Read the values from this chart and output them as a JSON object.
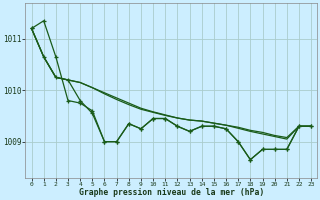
{
  "title": "Graphe pression niveau de la mer (hPa)",
  "bg_color": "#cceeff",
  "grid_color": "#aacccc",
  "line_color": "#1a5c1a",
  "xlim": [
    -0.5,
    23.5
  ],
  "ylim": [
    1008.3,
    1011.7
  ],
  "yticks": [
    1009,
    1010,
    1011
  ],
  "xticks": [
    0,
    1,
    2,
    3,
    4,
    5,
    6,
    7,
    8,
    9,
    10,
    11,
    12,
    13,
    14,
    15,
    16,
    17,
    18,
    19,
    20,
    21,
    22,
    23
  ],
  "series1": [
    1011.2,
    1011.35,
    1010.65,
    1009.8,
    1009.75,
    1009.6,
    1009.0,
    1009.0,
    1009.35,
    1009.25,
    1009.45,
    1009.45,
    1009.3,
    1009.2,
    1009.3,
    1009.3,
    1009.25,
    1009.0,
    1008.65,
    1008.85,
    1008.85,
    1008.85,
    1009.3,
    1009.3
  ],
  "series2": [
    1011.2,
    1010.65,
    1010.25,
    1010.2,
    1009.8,
    1009.55,
    1009.0,
    1009.0,
    1009.35,
    1009.25,
    1009.45,
    1009.45,
    1009.3,
    1009.2,
    1009.3,
    1009.3,
    1009.25,
    1009.0,
    1008.65,
    1008.85,
    1008.85,
    1008.85,
    1009.3,
    1009.3
  ],
  "series3": [
    1011.2,
    1010.65,
    1010.25,
    1010.2,
    1010.15,
    1010.05,
    1009.95,
    1009.85,
    1009.75,
    1009.65,
    1009.58,
    1009.52,
    1009.46,
    1009.42,
    1009.4,
    1009.36,
    1009.32,
    1009.28,
    1009.22,
    1009.18,
    1009.12,
    1009.08,
    1009.3,
    1009.3
  ],
  "series4": [
    1011.2,
    1010.65,
    1010.25,
    1010.2,
    1010.15,
    1010.05,
    1009.93,
    1009.82,
    1009.72,
    1009.63,
    1009.57,
    1009.51,
    1009.46,
    1009.42,
    1009.4,
    1009.36,
    1009.32,
    1009.26,
    1009.2,
    1009.15,
    1009.1,
    1009.05,
    1009.3,
    1009.3
  ]
}
